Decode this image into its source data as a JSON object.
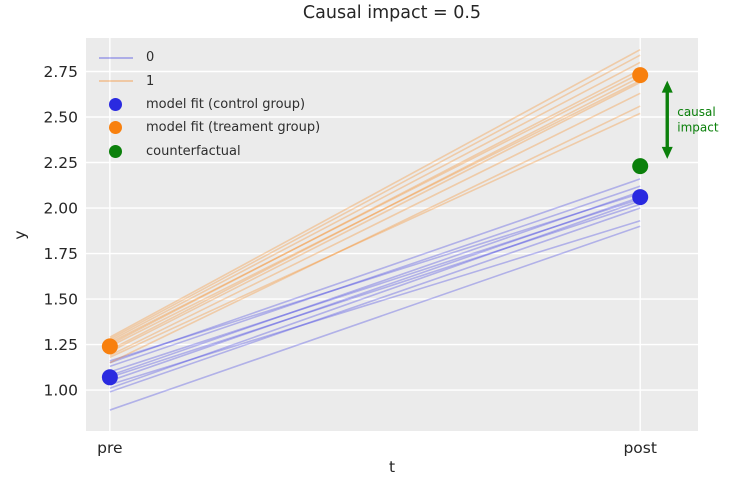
{
  "figure": {
    "title": "Causal impact = 0.5",
    "xlabel": "t",
    "ylabel": "y"
  },
  "chart_data": {
    "type": "line",
    "title": "Causal impact = 0.5",
    "xlabel": "t",
    "ylabel": "y",
    "categories": [
      "pre",
      "post"
    ],
    "x": [
      0,
      1
    ],
    "xlim": [
      -0.045,
      1.109
    ],
    "ylim": [
      0.775,
      2.934
    ],
    "yticks": [
      1.0,
      1.25,
      1.5,
      1.75,
      2.0,
      2.25,
      2.5,
      2.75
    ],
    "grid": true,
    "plot_bg": "#ebebeb",
    "grid_color": "#ffffff",
    "text_color": "#262626",
    "series": [
      {
        "name": "0",
        "color": "#2a2ae0",
        "alpha": 0.3,
        "lines": [
          [
            0.89,
            1.9
          ],
          [
            0.99,
            2.0
          ],
          [
            1.01,
            2.04
          ],
          [
            1.03,
            1.93
          ],
          [
            1.05,
            2.06
          ],
          [
            1.07,
            2.02
          ],
          [
            1.08,
            2.09
          ],
          [
            1.1,
            2.05
          ],
          [
            1.13,
            2.12
          ],
          [
            1.15,
            2.16
          ],
          [
            1.16,
            2.08
          ]
        ]
      },
      {
        "name": "1",
        "color": "#f8800e",
        "alpha": 0.3,
        "lines": [
          [
            1.15,
            2.56
          ],
          [
            1.18,
            2.52
          ],
          [
            1.19,
            2.63
          ],
          [
            1.21,
            2.69
          ],
          [
            1.22,
            2.72
          ],
          [
            1.24,
            2.7
          ],
          [
            1.25,
            2.76
          ],
          [
            1.26,
            2.74
          ],
          [
            1.27,
            2.8
          ],
          [
            1.28,
            2.84
          ],
          [
            1.29,
            2.87
          ]
        ]
      }
    ],
    "points": [
      {
        "name": "model fit (control group)",
        "color": "#2a2ae0",
        "x": [
          0,
          1
        ],
        "y": [
          1.07,
          2.06
        ]
      },
      {
        "name": "model fit (treament group)",
        "color": "#f8800e",
        "x": [
          0,
          1
        ],
        "y": [
          1.24,
          2.73
        ]
      },
      {
        "name": "counterfactual",
        "color": "#0b800b",
        "x": [
          1
        ],
        "y": [
          2.23
        ]
      }
    ],
    "annotation": {
      "label": "causal impact",
      "lines": [
        "causal",
        "impact"
      ],
      "color": "#0b800b",
      "x": 1.051,
      "y_from": 2.27,
      "y_to": 2.7
    },
    "legend": [
      {
        "label": "0",
        "swatch": "line",
        "color": "rgba(42,42,224,0.32)"
      },
      {
        "label": "1",
        "swatch": "line",
        "color": "rgba(248,128,14,0.32)"
      },
      {
        "label": "model fit (control group)",
        "swatch": "dot",
        "color": "#2a2ae0"
      },
      {
        "label": "model fit (treament group)",
        "swatch": "dot",
        "color": "#f8800e"
      },
      {
        "label": "counterfactual",
        "swatch": "dot",
        "color": "#0b800b"
      }
    ],
    "legend_position": "upper left"
  }
}
